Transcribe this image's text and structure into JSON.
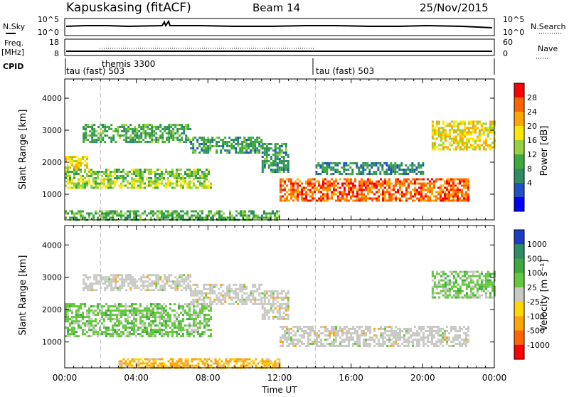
{
  "header": {
    "station": "Kapuskasing (fitACF)",
    "beam": "Beam 14",
    "date": "25/Nov/2015"
  },
  "colors": {
    "trace": "#000000",
    "ground_scatter": "#c8c8c4",
    "dashed_marker": "#bbbbbb"
  },
  "top_panels": {
    "sky": {
      "left_label": "N.Sky",
      "right_label": "N.Search",
      "left_ticks": [
        "10^5",
        "10^0"
      ],
      "right_ticks": [
        "10^5",
        "10^0"
      ]
    },
    "freq": {
      "left_label_1": "Freq.",
      "left_label_2": "[MHz]",
      "right_label": "Nave",
      "left_ticks": [
        "18",
        "8"
      ],
      "right_ticks": [
        "60",
        "0"
      ]
    },
    "cpid": {
      "label": "CPID",
      "segments": [
        {
          "text": "tau (fast) 503",
          "start": "00:00"
        },
        {
          "text": "themis 3300",
          "start": "02:00"
        },
        {
          "text": "tau (fast) 503",
          "start": "14:00"
        }
      ]
    }
  },
  "chart_data": [
    {
      "type": "heatmap",
      "name": "power",
      "ylabel": "Slant Range [km]",
      "yticks": [
        1000,
        2000,
        3000,
        4000
      ],
      "ylim": [
        200,
        4600
      ],
      "xlim_hours": [
        0,
        24
      ],
      "colorbar": {
        "label": "Power [dB]",
        "ticks": [
          "28",
          "24",
          "20",
          "16",
          "12",
          "8",
          "4"
        ],
        "colors": [
          "#0000ff",
          "#1e50c8",
          "#2d8c64",
          "#3caa3c",
          "#96d23c",
          "#ffe600",
          "#ffa500",
          "#ff6400",
          "#ff0000"
        ]
      },
      "bands": [
        {
          "t0": 0.0,
          "t1": 8.2,
          "r0": 1200,
          "r1": 1500,
          "value": 17
        },
        {
          "t0": 0.0,
          "t1": 8.0,
          "r0": 1500,
          "r1": 1800,
          "value": 14
        },
        {
          "t0": 0.0,
          "t1": 1.2,
          "r0": 1800,
          "r1": 2200,
          "value": 20
        },
        {
          "t0": 1.0,
          "t1": 7.0,
          "r0": 2600,
          "r1": 3200,
          "value": 11
        },
        {
          "t0": 7.0,
          "t1": 11.0,
          "r0": 2300,
          "r1": 2800,
          "value": 10
        },
        {
          "t0": 11.0,
          "t1": 12.5,
          "r0": 1700,
          "r1": 2600,
          "value": 10
        },
        {
          "t0": 12.0,
          "t1": 22.5,
          "r0": 800,
          "r1": 1500,
          "value": 28
        },
        {
          "t0": 14.0,
          "t1": 20.0,
          "r0": 1600,
          "r1": 2000,
          "value": 8
        },
        {
          "t0": 20.5,
          "t1": 24.0,
          "r0": 2400,
          "r1": 3300,
          "value": 20
        },
        {
          "t0": 0.0,
          "t1": 12.0,
          "r0": 200,
          "r1": 500,
          "value": 12
        }
      ]
    },
    {
      "type": "heatmap",
      "name": "velocity",
      "ylabel": "Slant Range [km]",
      "yticks": [
        1000,
        2000,
        3000,
        4000
      ],
      "ylim": [
        200,
        4600
      ],
      "xlim_hours": [
        0,
        24
      ],
      "xlabel": "Time UT",
      "xticks": [
        "00:00",
        "04:00",
        "08:00",
        "12:00",
        "16:00",
        "20:00",
        "00:00"
      ],
      "colorbar": {
        "label": "Velocity  [m s⁻¹]",
        "ticks": [
          "1000",
          "500",
          "100",
          "25",
          "-25",
          "-100",
          "-500",
          "-1000"
        ],
        "colors": [
          "#1e3cc8",
          "#2d8c64",
          "#3caa3c",
          "#64c83c",
          "#c8c8c4",
          "#ffd700",
          "#ffa500",
          "#ff6400",
          "#ff0000"
        ]
      },
      "bands": [
        {
          "t0": 0.0,
          "t1": 8.2,
          "r0": 1200,
          "r1": 2200,
          "value": 100
        },
        {
          "t0": 1.0,
          "t1": 7.0,
          "r0": 2600,
          "r1": 3100,
          "value": 0
        },
        {
          "t0": 7.0,
          "t1": 11.0,
          "r0": 2200,
          "r1": 2800,
          "value": 0
        },
        {
          "t0": 11.0,
          "t1": 12.5,
          "r0": 1700,
          "r1": 2600,
          "value": 0
        },
        {
          "t0": 12.0,
          "t1": 22.5,
          "r0": 900,
          "r1": 1500,
          "value": 0
        },
        {
          "t0": 20.5,
          "t1": 24.0,
          "r0": 2400,
          "r1": 3200,
          "value": 100
        },
        {
          "t0": 3.0,
          "t1": 12.0,
          "r0": 200,
          "r1": 500,
          "value": -100
        }
      ]
    }
  ]
}
